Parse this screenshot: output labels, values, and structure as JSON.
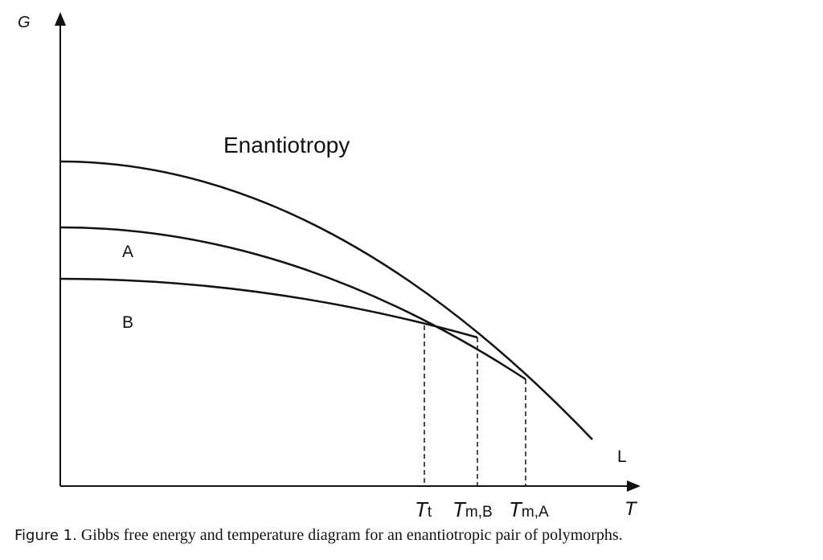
{
  "diagram": {
    "title": "Enantiotropy",
    "y_axis_label": "G",
    "x_axis_label": "T",
    "curves": [
      {
        "name": "L",
        "label": "L"
      },
      {
        "name": "A",
        "label": "A"
      },
      {
        "name": "B",
        "label": "B"
      }
    ],
    "x_markers": {
      "transition": {
        "main": "T",
        "sub": "t"
      },
      "melt_b": {
        "main": "T",
        "sub": "m,B"
      },
      "melt_a": {
        "main": "T",
        "sub": "m,A"
      }
    }
  },
  "caption": {
    "number": "Figure 1.",
    "text": " Gibbs free energy and temperature diagram for an enantiotropic pair of polymorphs."
  }
}
